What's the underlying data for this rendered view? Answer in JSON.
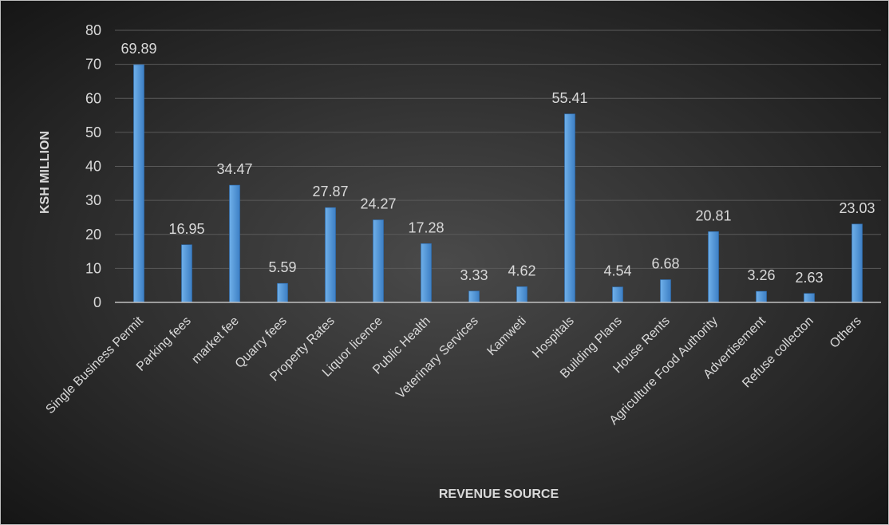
{
  "chart_data": {
    "type": "bar",
    "title": "",
    "xlabel": "REVENUE SOURCE",
    "ylabel": "KSH MILLION",
    "ylim": [
      0,
      80
    ],
    "yticks": [
      0,
      10,
      20,
      30,
      40,
      50,
      60,
      70,
      80
    ],
    "grid": true,
    "legend": "none",
    "categories": [
      "Single Business Permit",
      "Parking fees",
      "market fee",
      "Quarry fees",
      "Property Rates",
      "Liquor licence",
      "Public Health",
      "Veterinary Services",
      "Kamweti",
      "Hospitals",
      "Building Plans",
      "House Rents",
      "Agriculture Food Authority",
      "Advertisement",
      "Refuse collecton",
      "Others"
    ],
    "values": [
      69.89,
      16.95,
      34.47,
      5.59,
      27.87,
      24.27,
      17.28,
      3.33,
      4.62,
      55.41,
      4.54,
      6.68,
      20.81,
      3.26,
      2.63,
      23.03
    ],
    "data_labels": [
      "69.89",
      "16.95",
      "34.47",
      "5.59",
      "27.87",
      "24.27",
      "17.28",
      "3.33",
      "4.62",
      "55.41",
      "4.54",
      "6.68",
      "20.81",
      "3.26",
      "2.63",
      "23.03"
    ],
    "colors": {
      "bar_top": "#6fb0ea",
      "bar_bottom": "#3d7fc4",
      "bar_edge": "#2e6fb4",
      "gridline": "#5a5a5a",
      "axis_line": "#bfbfbf",
      "text": "#d9d9d9",
      "background_center": "#4a4a4a",
      "background_edge": "#161616"
    }
  }
}
